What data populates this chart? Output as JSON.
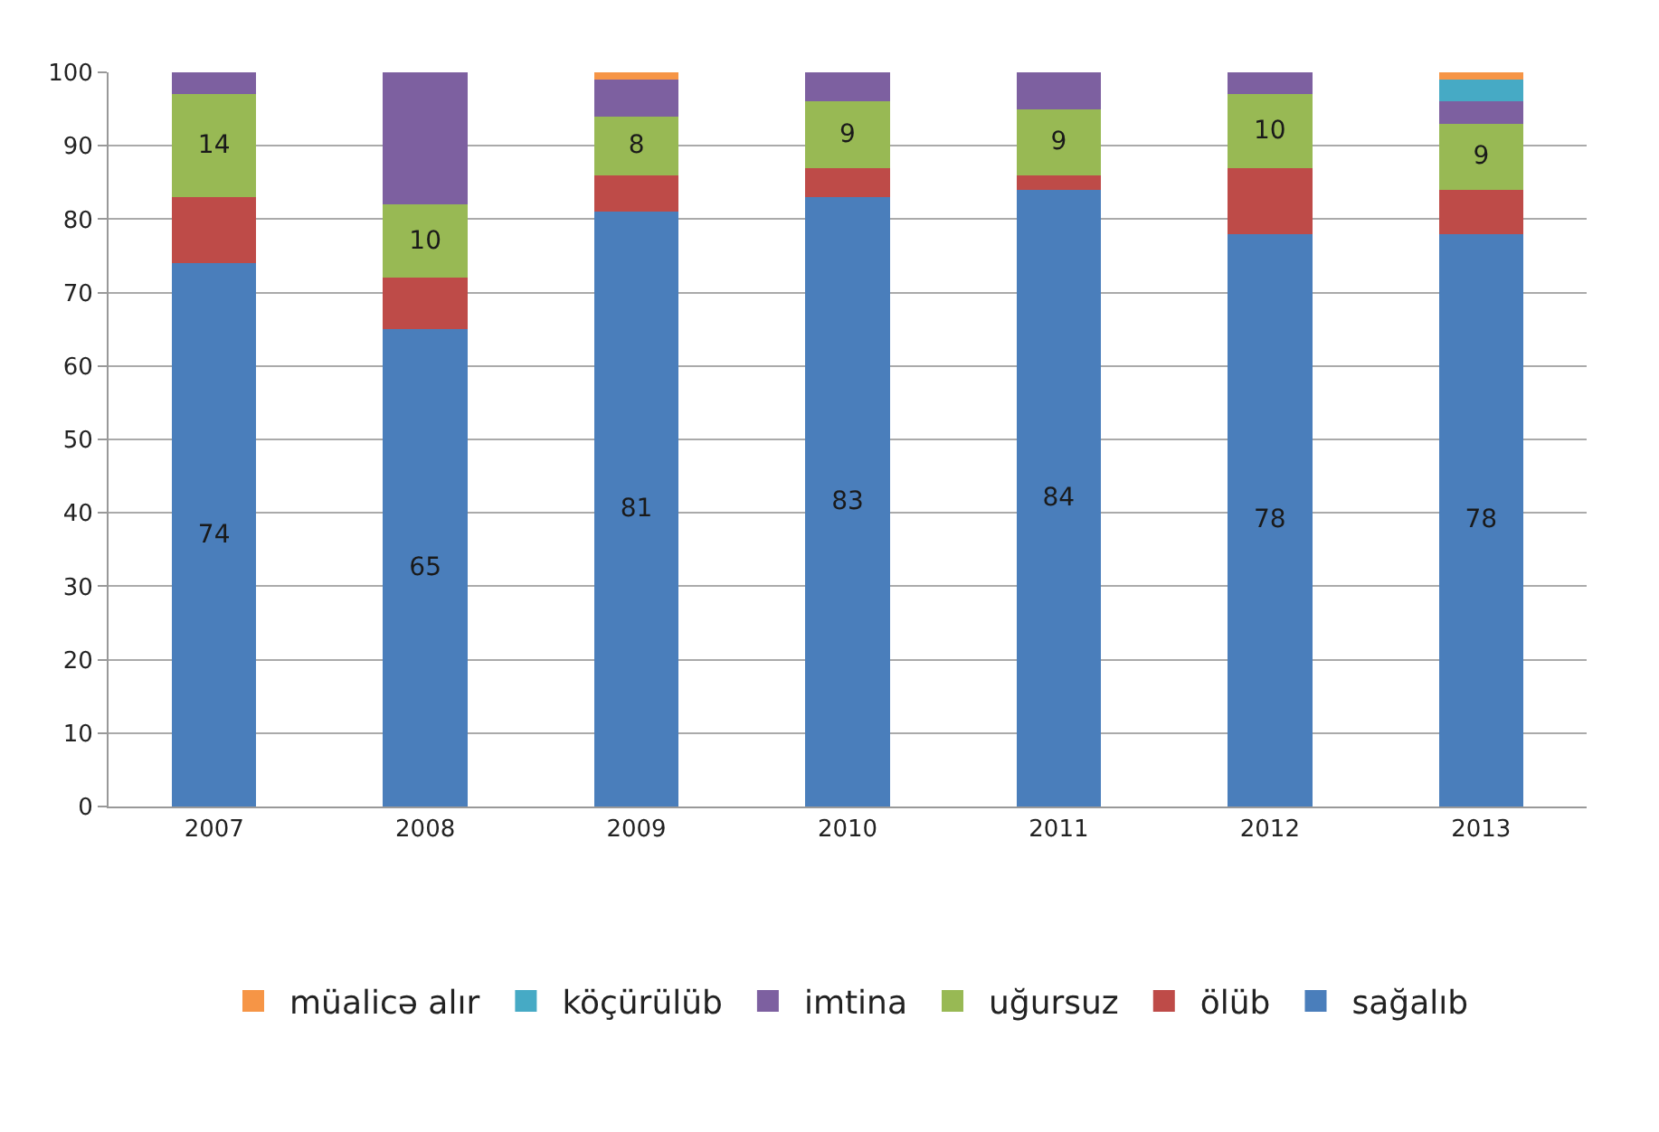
{
  "chart_data": {
    "type": "bar",
    "stacked": true,
    "categories": [
      "2007",
      "2008",
      "2009",
      "2010",
      "2011",
      "2012",
      "2013"
    ],
    "series": [
      {
        "name": "sağalıb",
        "color": "#4a7ebb",
        "values": [
          74,
          65,
          81,
          83,
          84,
          78,
          78
        ],
        "value_labels": [
          "74",
          "65",
          "81",
          "83",
          "84",
          "78",
          "78"
        ]
      },
      {
        "name": "ölüb",
        "color": "#be4b48",
        "values": [
          9,
          7,
          5,
          4,
          2,
          9,
          6
        ]
      },
      {
        "name": "uğursuz",
        "color": "#98b954",
        "values": [
          14,
          10,
          8,
          9,
          9,
          10,
          9
        ],
        "value_labels": [
          "14",
          "10",
          "8",
          "9",
          "9",
          "10",
          "9"
        ]
      },
      {
        "name": "imtina",
        "color": "#7d60a0",
        "values": [
          3,
          18,
          5,
          4,
          5,
          3,
          3
        ]
      },
      {
        "name": "köçürülüb",
        "color": "#46aac5",
        "values": [
          0,
          0,
          0,
          0,
          0,
          0,
          3
        ]
      },
      {
        "name": "müalicə alır",
        "color": "#f69546",
        "values": [
          0,
          0,
          1,
          0,
          0,
          0,
          1
        ]
      }
    ],
    "ylim": [
      0,
      100
    ],
    "yticks": [
      0,
      10,
      20,
      30,
      40,
      50,
      60,
      70,
      80,
      90,
      100
    ],
    "grid": "y",
    "legend": "bottom"
  }
}
